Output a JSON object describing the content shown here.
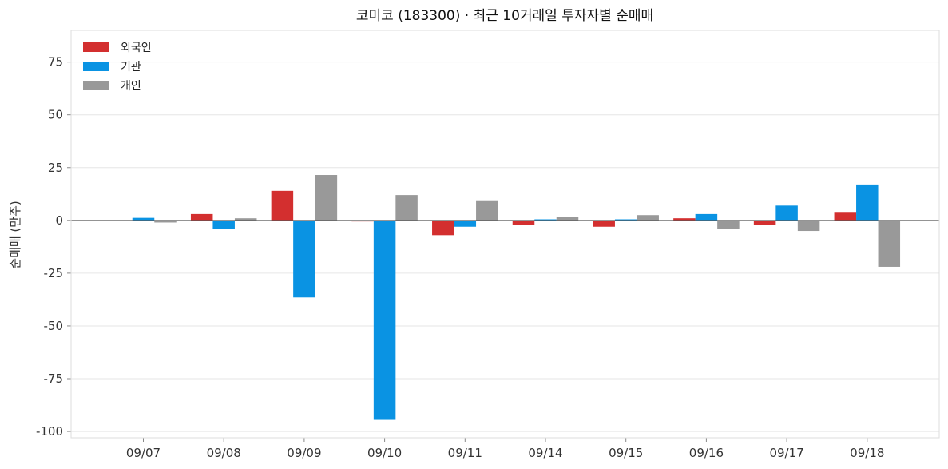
{
  "chart_data": {
    "type": "bar",
    "title": "코미코 (183300) · 최근 10거래일 투자자별 순매매",
    "xlabel": "",
    "ylabel": "순매매 (만주)",
    "categories": [
      "09/07",
      "09/08",
      "09/09",
      "09/10",
      "09/11",
      "09/14",
      "09/15",
      "09/16",
      "09/17",
      "09/18"
    ],
    "series": [
      {
        "name": "외국인",
        "color": "#d32f2f",
        "values": [
          0,
          3,
          14,
          -0.5,
          -7,
          -2,
          -3,
          1,
          -2,
          4
        ]
      },
      {
        "name": "기관",
        "color": "#0a93e3",
        "values": [
          1.2,
          -4,
          -36.5,
          -94.5,
          -3,
          0.5,
          0.5,
          3,
          7,
          17
        ]
      },
      {
        "name": "개인",
        "color": "#999999",
        "values": [
          -1,
          1,
          21.5,
          12,
          9.5,
          1.5,
          2.5,
          -4,
          -5,
          -22
        ]
      }
    ],
    "yticks": [
      75,
      50,
      25,
      0,
      -25,
      -50,
      -75,
      -100
    ],
    "ylim": [
      -103,
      90
    ],
    "grid": true,
    "legend": "top-left"
  }
}
